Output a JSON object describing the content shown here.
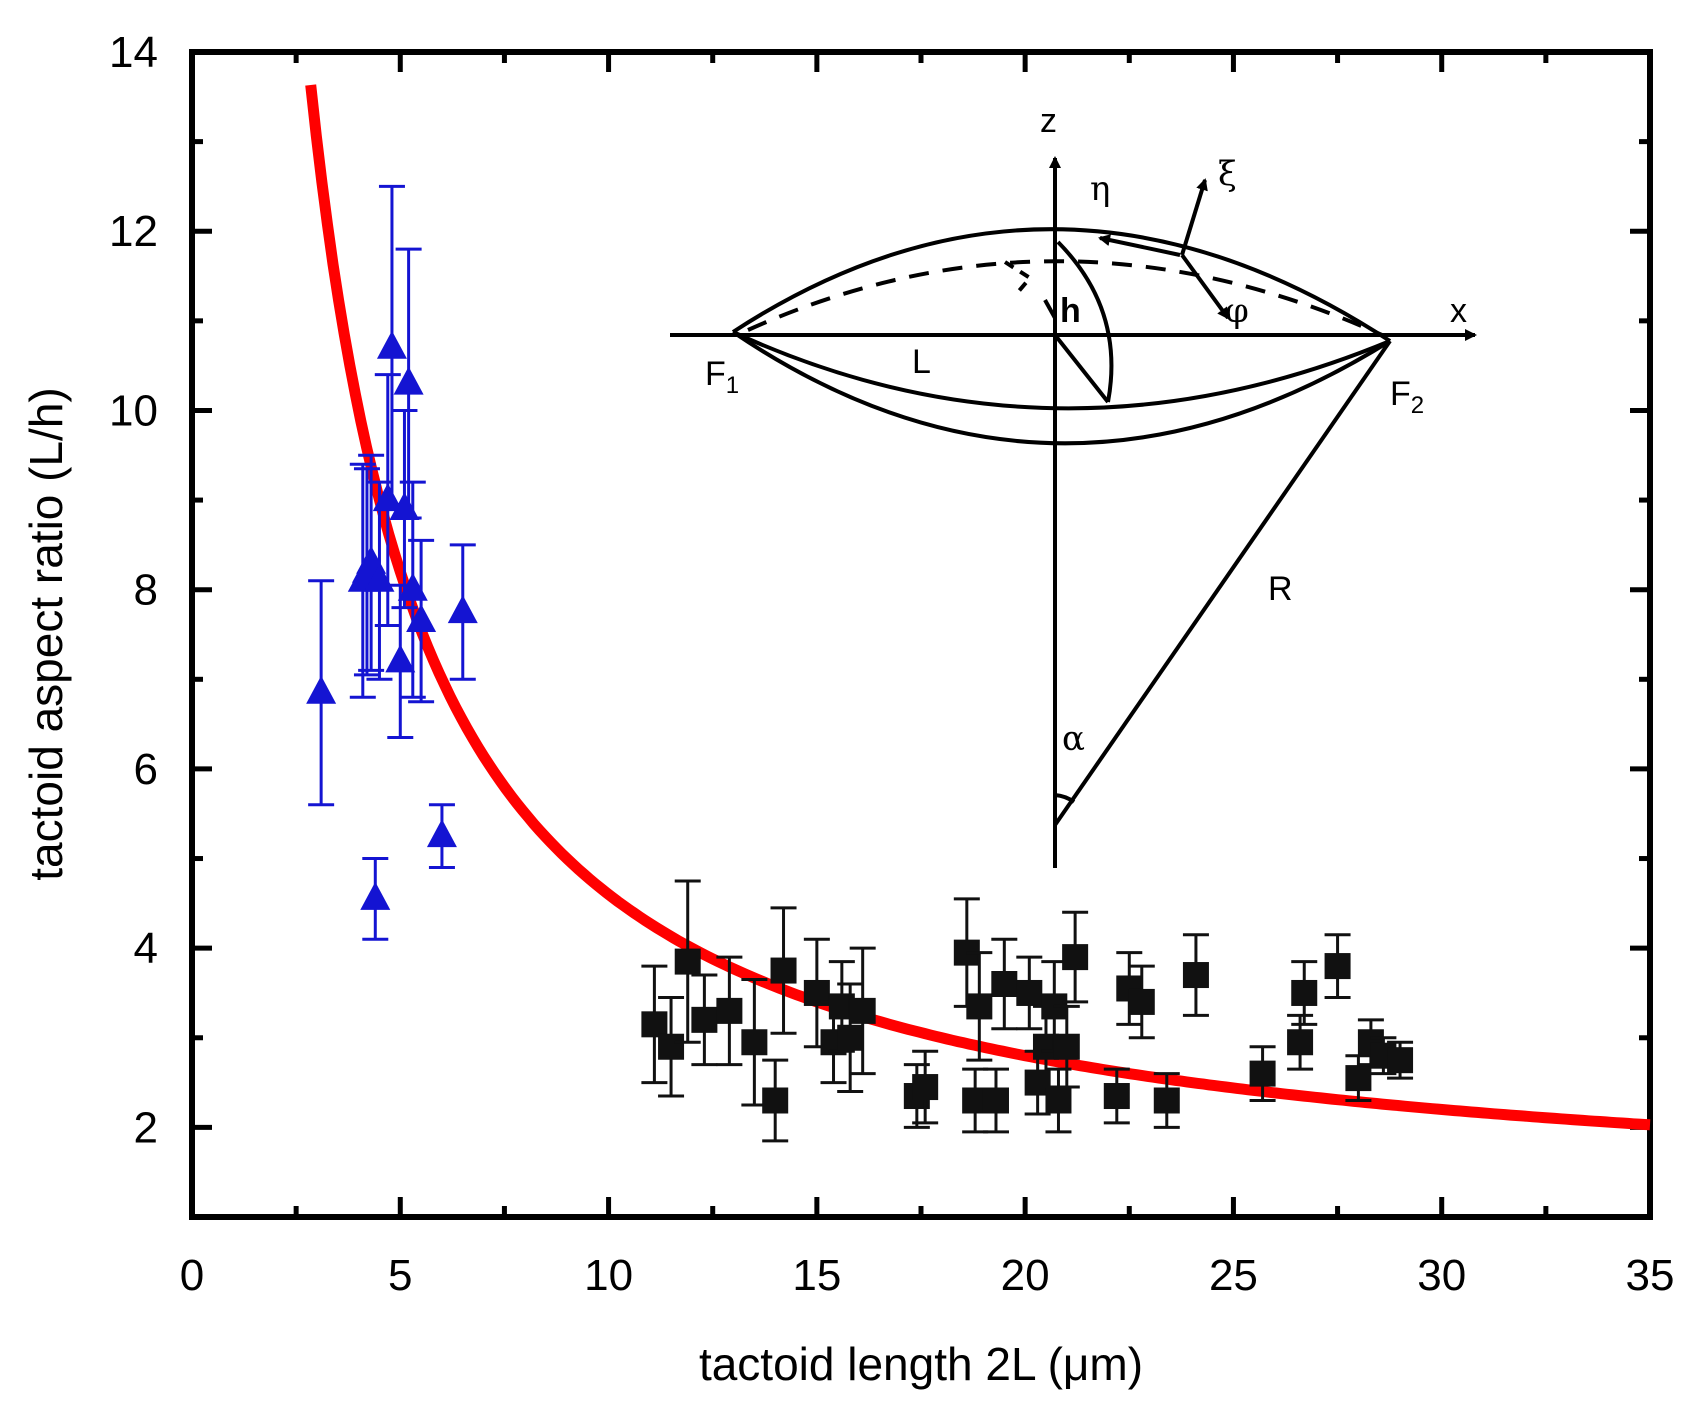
{
  "chart_data": {
    "type": "scatter",
    "xlabel": "tactoid length 2L (μm)",
    "ylabel": "tactoid aspect ratio (L/h)",
    "xlim": [
      0,
      35
    ],
    "ylim": [
      1,
      14
    ],
    "x_ticks": [
      0,
      5,
      10,
      15,
      20,
      25,
      30,
      35
    ],
    "y_ticks": [
      2,
      4,
      6,
      8,
      10,
      12,
      14
    ],
    "x_minor_ticks": [
      2.5,
      7.5,
      12.5,
      17.5,
      22.5,
      27.5,
      32.5
    ],
    "y_minor_ticks": [
      3,
      5,
      7,
      9,
      11,
      13
    ],
    "colors": {
      "triangles": "#1414d2",
      "squares": "#111111",
      "fit": "#ff0000"
    },
    "series": [
      {
        "name": "triangles",
        "marker": "triangle",
        "points": [
          {
            "x": 3.1,
            "y": 6.85,
            "err": 1.25
          },
          {
            "x": 4.1,
            "y": 8.1,
            "err": 1.3
          },
          {
            "x": 4.2,
            "y": 8.2,
            "err": 1.15
          },
          {
            "x": 4.3,
            "y": 8.3,
            "err": 1.2
          },
          {
            "x": 4.4,
            "y": 4.55,
            "err": 0.45
          },
          {
            "x": 4.5,
            "y": 8.1,
            "err": 1.1
          },
          {
            "x": 4.7,
            "y": 9.0,
            "err": 1.4
          },
          {
            "x": 4.8,
            "y": 10.7,
            "err": 1.8
          },
          {
            "x": 5.0,
            "y": 7.2,
            "err": 0.85
          },
          {
            "x": 5.1,
            "y": 8.9,
            "err": 1.1
          },
          {
            "x": 5.2,
            "y": 10.3,
            "err": 1.5
          },
          {
            "x": 5.3,
            "y": 8.0,
            "err": 1.2
          },
          {
            "x": 5.5,
            "y": 7.65,
            "err": 0.9
          },
          {
            "x": 6.0,
            "y": 5.25,
            "err": 0.35
          },
          {
            "x": 6.5,
            "y": 7.75,
            "err": 0.75
          }
        ]
      },
      {
        "name": "squares",
        "marker": "square",
        "points": [
          {
            "x": 11.1,
            "y": 3.15,
            "err": 0.65
          },
          {
            "x": 11.5,
            "y": 2.9,
            "err": 0.55
          },
          {
            "x": 11.9,
            "y": 3.85,
            "err": 0.9
          },
          {
            "x": 12.3,
            "y": 3.2,
            "err": 0.5
          },
          {
            "x": 12.9,
            "y": 3.3,
            "err": 0.6
          },
          {
            "x": 13.5,
            "y": 2.95,
            "err": 0.7
          },
          {
            "x": 14.0,
            "y": 2.3,
            "err": 0.45
          },
          {
            "x": 14.2,
            "y": 3.75,
            "err": 0.7
          },
          {
            "x": 15.0,
            "y": 3.5,
            "err": 0.6
          },
          {
            "x": 15.4,
            "y": 2.95,
            "err": 0.45
          },
          {
            "x": 15.6,
            "y": 3.35,
            "err": 0.5
          },
          {
            "x": 15.8,
            "y": 3.0,
            "err": 0.6
          },
          {
            "x": 16.1,
            "y": 3.3,
            "err": 0.7
          },
          {
            "x": 17.4,
            "y": 2.35,
            "err": 0.35
          },
          {
            "x": 17.6,
            "y": 2.45,
            "err": 0.4
          },
          {
            "x": 18.6,
            "y": 3.95,
            "err": 0.6
          },
          {
            "x": 18.8,
            "y": 2.3,
            "err": 0.35
          },
          {
            "x": 18.9,
            "y": 3.35,
            "err": 0.6
          },
          {
            "x": 19.3,
            "y": 2.3,
            "err": 0.35
          },
          {
            "x": 19.5,
            "y": 3.6,
            "err": 0.5
          },
          {
            "x": 20.1,
            "y": 3.5,
            "err": 0.4
          },
          {
            "x": 20.3,
            "y": 2.5,
            "err": 0.35
          },
          {
            "x": 20.5,
            "y": 2.9,
            "err": 0.45
          },
          {
            "x": 20.7,
            "y": 3.35,
            "err": 0.5
          },
          {
            "x": 20.8,
            "y": 2.3,
            "err": 0.35
          },
          {
            "x": 21.0,
            "y": 2.9,
            "err": 0.45
          },
          {
            "x": 21.2,
            "y": 3.9,
            "err": 0.5
          },
          {
            "x": 22.2,
            "y": 2.35,
            "err": 0.3
          },
          {
            "x": 22.5,
            "y": 3.55,
            "err": 0.4
          },
          {
            "x": 22.8,
            "y": 3.4,
            "err": 0.4
          },
          {
            "x": 23.4,
            "y": 2.3,
            "err": 0.3
          },
          {
            "x": 24.1,
            "y": 3.7,
            "err": 0.45
          },
          {
            "x": 25.7,
            "y": 2.6,
            "err": 0.3
          },
          {
            "x": 26.6,
            "y": 2.95,
            "err": 0.3
          },
          {
            "x": 26.7,
            "y": 3.5,
            "err": 0.35
          },
          {
            "x": 27.5,
            "y": 3.8,
            "err": 0.35
          },
          {
            "x": 28.0,
            "y": 2.55,
            "err": 0.25
          },
          {
            "x": 28.3,
            "y": 2.95,
            "err": 0.25
          },
          {
            "x": 28.6,
            "y": 2.8,
            "err": 0.2
          },
          {
            "x": 29.0,
            "y": 2.75,
            "err": 0.2
          }
        ]
      }
    ],
    "fit_curve": {
      "name": "fit",
      "model": "y = a / x + c",
      "a": 36,
      "c": 1.0,
      "x_range": [
        2.85,
        35
      ]
    },
    "inset": {
      "labels": {
        "z": "z",
        "x": "x",
        "eta": "η",
        "xi": "ξ",
        "phi": "φ",
        "h": "h",
        "L": "L",
        "F1": "F",
        "F1_sub": "1",
        "F2": "F",
        "F2_sub": "2",
        "R": "R",
        "alpha": "α"
      }
    }
  }
}
